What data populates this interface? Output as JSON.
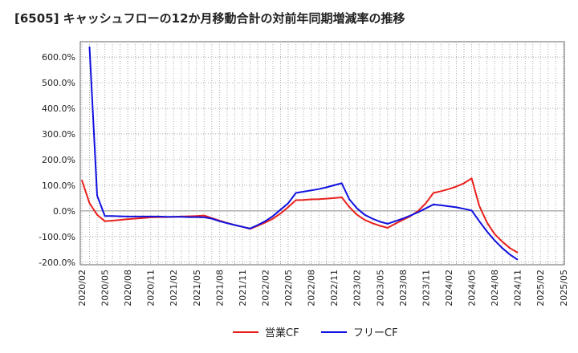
{
  "chart_data": {
    "type": "line",
    "title": "[6505]  キャッシュフローの12か月移動合計の対前年同期増減率の推移",
    "xlabel": "",
    "ylabel": "",
    "ylim": [
      -210,
      660
    ],
    "y_ticks": [
      -200,
      -100,
      0,
      100,
      200,
      300,
      400,
      500,
      600
    ],
    "y_tick_labels": [
      "-200.0%",
      "-100.0%",
      "0.0%",
      "100.0%",
      "200.0%",
      "300.0%",
      "400.0%",
      "500.0%",
      "600.0%"
    ],
    "x_tick_labels": [
      "2020/02",
      "2020/05",
      "2020/08",
      "2020/11",
      "2021/02",
      "2021/05",
      "2021/08",
      "2021/11",
      "2022/02",
      "2022/05",
      "2022/08",
      "2022/11",
      "2023/02",
      "2023/05",
      "2023/08",
      "2023/11",
      "2024/02",
      "2024/05",
      "2024/08",
      "2024/11",
      "2025/02",
      "2025/05"
    ],
    "grid": true,
    "legend_position": "bottom",
    "series": [
      {
        "name": "営業CF",
        "color": "#e8201c",
        "values": [
          120,
          30,
          -15,
          -40,
          -38,
          -35,
          -32,
          -30,
          -28,
          -25,
          -24,
          -24,
          -23,
          -22,
          -21,
          -20,
          -18,
          -28,
          -38,
          -47,
          -55,
          -62,
          -70,
          -58,
          -45,
          -30,
          -10,
          15,
          42,
          43,
          45,
          46,
          48,
          50,
          53,
          15,
          -15,
          -35,
          -48,
          -58,
          -66,
          -50,
          -35,
          -20,
          0,
          30,
          70,
          77,
          85,
          95,
          108,
          127,
          20,
          -45,
          -90,
          -120,
          -145,
          -162
        ]
      },
      {
        "name": "フリーCF",
        "color": "#1010e0",
        "values": [
          null,
          640,
          60,
          -20,
          -20,
          -21,
          -22,
          -22,
          -22,
          -22,
          -22,
          -23,
          -23,
          -23,
          -24,
          -24,
          -25,
          -30,
          -40,
          -48,
          -55,
          -62,
          -69,
          -55,
          -40,
          -20,
          5,
          30,
          70,
          75,
          80,
          85,
          92,
          100,
          108,
          45,
          10,
          -15,
          -30,
          -42,
          -50,
          -40,
          -30,
          -18,
          -5,
          10,
          25,
          22,
          18,
          14,
          8,
          2,
          -40,
          -80,
          -115,
          -145,
          -170,
          -190
        ]
      }
    ]
  }
}
